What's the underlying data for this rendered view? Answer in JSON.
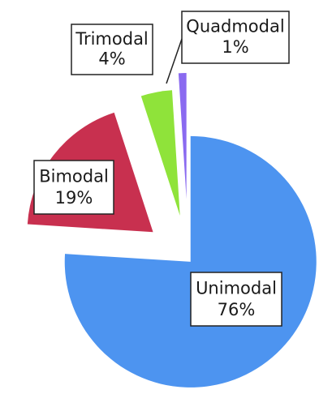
{
  "chart_data": {
    "type": "pie",
    "exploded": true,
    "slices": [
      {
        "name": "Unimodal",
        "percent_label": "76%",
        "value": 76,
        "color": "#4d94f0"
      },
      {
        "name": "Bimodal",
        "percent_label": "19%",
        "value": 19,
        "color": "#c8304f"
      },
      {
        "name": "Trimodal",
        "percent_label": "4%",
        "value": 4,
        "color": "#8fe33a"
      },
      {
        "name": "Quadmodal",
        "percent_label": "1%",
        "value": 1,
        "color": "#8a6af0"
      }
    ],
    "legend": false
  }
}
